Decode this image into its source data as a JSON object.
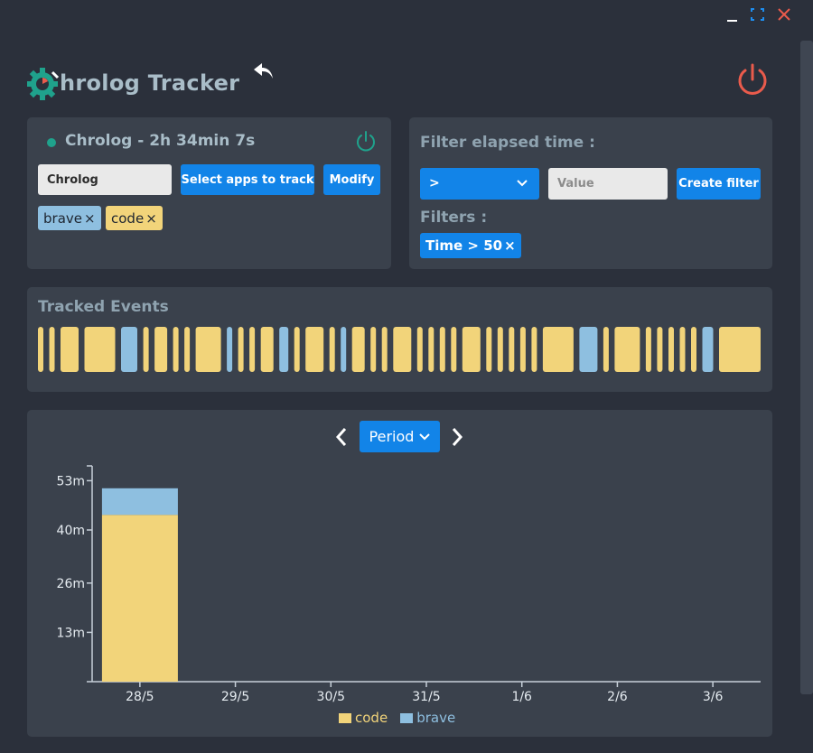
{
  "colors": {
    "code": "#f2d47a",
    "brave": "#8ebfe0",
    "accent": "#1284e8",
    "power": "#ea5b4c",
    "active": "#1fa28c"
  },
  "window": {
    "minimize_icon": "minimize-icon",
    "maximize_icon": "maximize-icon",
    "close_icon": "close-icon"
  },
  "header": {
    "title": "hrolog Tracker",
    "undo_icon": "undo-arrow-icon",
    "power_icon": "power-icon"
  },
  "tracker": {
    "title": "Chrolog - 2h 34min 7s",
    "name_value": "Chrolog",
    "select_apps_label": "Select apps to track",
    "modify_label": "Modify",
    "apps": [
      {
        "label": "brave",
        "color": "#8ebfe0"
      },
      {
        "label": "code",
        "color": "#f2d47a"
      }
    ],
    "remove_symbol": "×"
  },
  "filter": {
    "title": "Filter elapsed time :",
    "operator": ">",
    "value_placeholder": "Value",
    "create_label": "Create filter",
    "filters_title": "Filters :",
    "filters": [
      "Time > 50"
    ],
    "remove_symbol": "×"
  },
  "events": {
    "title": "Tracked Events",
    "sequence": [
      "code",
      "code",
      "code",
      "code",
      "brave",
      "code",
      "code",
      "code",
      "code",
      "code",
      "brave",
      "code",
      "code",
      "code",
      "brave",
      "code",
      "code",
      "code",
      "brave",
      "code",
      "code",
      "code",
      "code",
      "code",
      "code",
      "code",
      "code",
      "code",
      "code",
      "code",
      "code",
      "code",
      "code",
      "code",
      "brave",
      "code",
      "code",
      "code",
      "code",
      "code",
      "code",
      "code",
      "brave",
      "code"
    ]
  },
  "chart": {
    "period_label": "Period",
    "prev_icon": "chevron-left-icon",
    "next_icon": "chevron-right-icon"
  },
  "chart_data": {
    "type": "bar",
    "stacked": true,
    "categories": [
      "28/5",
      "29/5",
      "30/5",
      "31/5",
      "1/6",
      "2/6",
      "3/6"
    ],
    "series": [
      {
        "name": "code",
        "values": [
          44,
          0,
          0,
          0,
          0,
          0,
          0
        ]
      },
      {
        "name": "brave",
        "values": [
          7,
          0,
          0,
          0,
          0,
          0,
          0
        ]
      }
    ],
    "yticks": [
      "13m",
      "26m",
      "40m",
      "53m"
    ],
    "ytick_values": [
      13,
      26,
      40,
      53
    ],
    "ylim": [
      0,
      55
    ],
    "legend_position": "bottom",
    "grid": false
  }
}
